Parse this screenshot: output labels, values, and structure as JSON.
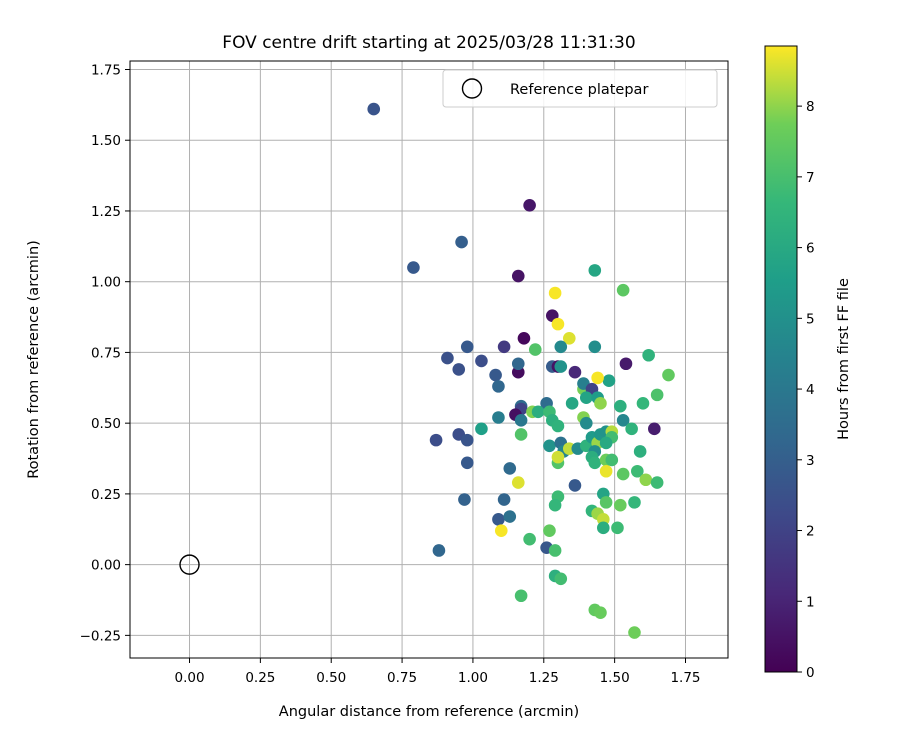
{
  "chart_data": {
    "type": "scatter",
    "title": "FOV centre drift starting at 2025/03/28 11:31:30",
    "xlabel": "Angular distance from reference (arcmin)",
    "ylabel": "Rotation from reference (arcmin)",
    "xlim": [
      -0.21,
      1.9
    ],
    "ylim": [
      -0.33,
      1.78
    ],
    "xticks": [
      0.0,
      0.25,
      0.5,
      0.75,
      1.0,
      1.25,
      1.5,
      1.75
    ],
    "xtick_labels": [
      "0.00",
      "0.25",
      "0.50",
      "0.75",
      "1.00",
      "1.25",
      "1.50",
      "1.75"
    ],
    "yticks": [
      -0.25,
      0.0,
      0.25,
      0.5,
      0.75,
      1.0,
      1.25,
      1.5,
      1.75
    ],
    "ytick_labels": [
      "−0.25",
      "0.00",
      "0.25",
      "0.50",
      "0.75",
      "1.00",
      "1.25",
      "1.50",
      "1.75"
    ],
    "grid": true,
    "legend": {
      "placement": "upper right",
      "entries": [
        "Reference platepar"
      ]
    },
    "reference_point": {
      "x": 0.0,
      "y": 0.0,
      "marker": "open-circle"
    },
    "colorbar": {
      "label": "Hours from first FF file",
      "colormap": "viridis",
      "range": [
        0,
        8.85
      ],
      "ticks": [
        0,
        1,
        2,
        3,
        4,
        5,
        6,
        7,
        8
      ],
      "tick_labels": [
        "0",
        "1",
        "2",
        "3",
        "4",
        "5",
        "6",
        "7",
        "8"
      ]
    },
    "points": [
      {
        "x": 0.65,
        "y": 1.61,
        "h": 2.6
      },
      {
        "x": 0.79,
        "y": 1.05,
        "h": 2.8
      },
      {
        "x": 0.96,
        "y": 1.14,
        "h": 3.0
      },
      {
        "x": 1.2,
        "y": 1.27,
        "h": 0.6
      },
      {
        "x": 1.16,
        "y": 1.02,
        "h": 0.5
      },
      {
        "x": 0.91,
        "y": 0.73,
        "h": 2.5
      },
      {
        "x": 0.98,
        "y": 0.77,
        "h": 2.8
      },
      {
        "x": 0.95,
        "y": 0.69,
        "h": 2.5
      },
      {
        "x": 1.03,
        "y": 0.72,
        "h": 2.4
      },
      {
        "x": 1.11,
        "y": 0.77,
        "h": 1.7
      },
      {
        "x": 1.18,
        "y": 0.8,
        "h": 0.2
      },
      {
        "x": 1.08,
        "y": 0.67,
        "h": 2.8
      },
      {
        "x": 1.09,
        "y": 0.63,
        "h": 3.3
      },
      {
        "x": 1.16,
        "y": 0.68,
        "h": 0.3
      },
      {
        "x": 1.16,
        "y": 0.71,
        "h": 3.3
      },
      {
        "x": 1.28,
        "y": 0.88,
        "h": 0.5
      },
      {
        "x": 1.29,
        "y": 0.96,
        "h": 8.8
      },
      {
        "x": 1.3,
        "y": 0.85,
        "h": 8.8
      },
      {
        "x": 1.34,
        "y": 0.8,
        "h": 8.6
      },
      {
        "x": 1.22,
        "y": 0.76,
        "h": 7.2
      },
      {
        "x": 1.28,
        "y": 0.7,
        "h": 2.9
      },
      {
        "x": 1.3,
        "y": 0.7,
        "h": 0.5
      },
      {
        "x": 1.31,
        "y": 0.77,
        "h": 4.7
      },
      {
        "x": 1.31,
        "y": 0.7,
        "h": 5.1
      },
      {
        "x": 1.36,
        "y": 0.68,
        "h": 1.1
      },
      {
        "x": 1.43,
        "y": 1.04,
        "h": 5.9
      },
      {
        "x": 1.53,
        "y": 0.97,
        "h": 7.4
      },
      {
        "x": 1.43,
        "y": 0.77,
        "h": 4.9
      },
      {
        "x": 1.54,
        "y": 0.71,
        "h": 0.7
      },
      {
        "x": 1.62,
        "y": 0.74,
        "h": 6.4
      },
      {
        "x": 1.69,
        "y": 0.67,
        "h": 7.5
      },
      {
        "x": 1.65,
        "y": 0.6,
        "h": 7.1
      },
      {
        "x": 1.6,
        "y": 0.57,
        "h": 6.6
      },
      {
        "x": 1.52,
        "y": 0.56,
        "h": 6.3
      },
      {
        "x": 1.48,
        "y": 0.65,
        "h": 5.7
      },
      {
        "x": 1.44,
        "y": 0.66,
        "h": 8.8
      },
      {
        "x": 1.39,
        "y": 0.62,
        "h": 7.8
      },
      {
        "x": 1.39,
        "y": 0.64,
        "h": 4.3
      },
      {
        "x": 1.42,
        "y": 0.62,
        "h": 2.0
      },
      {
        "x": 1.4,
        "y": 0.59,
        "h": 5.8
      },
      {
        "x": 1.44,
        "y": 0.59,
        "h": 5.5
      },
      {
        "x": 1.45,
        "y": 0.57,
        "h": 8.0
      },
      {
        "x": 1.35,
        "y": 0.57,
        "h": 5.9
      },
      {
        "x": 1.26,
        "y": 0.57,
        "h": 3.5
      },
      {
        "x": 1.17,
        "y": 0.56,
        "h": 3.5
      },
      {
        "x": 1.17,
        "y": 0.55,
        "h": 2.0
      },
      {
        "x": 1.15,
        "y": 0.53,
        "h": 0.4
      },
      {
        "x": 1.17,
        "y": 0.51,
        "h": 4.0
      },
      {
        "x": 1.09,
        "y": 0.52,
        "h": 4.2
      },
      {
        "x": 1.03,
        "y": 0.48,
        "h": 5.6
      },
      {
        "x": 1.21,
        "y": 0.54,
        "h": 7.9
      },
      {
        "x": 1.23,
        "y": 0.54,
        "h": 6.2
      },
      {
        "x": 1.27,
        "y": 0.54,
        "h": 6.8
      },
      {
        "x": 1.28,
        "y": 0.51,
        "h": 6.3
      },
      {
        "x": 1.3,
        "y": 0.49,
        "h": 6.4
      },
      {
        "x": 1.39,
        "y": 0.52,
        "h": 7.9
      },
      {
        "x": 1.4,
        "y": 0.5,
        "h": 4.8
      },
      {
        "x": 1.53,
        "y": 0.51,
        "h": 4.6
      },
      {
        "x": 1.56,
        "y": 0.48,
        "h": 6.4
      },
      {
        "x": 1.64,
        "y": 0.48,
        "h": 0.8
      },
      {
        "x": 0.87,
        "y": 0.44,
        "h": 2.4
      },
      {
        "x": 0.95,
        "y": 0.46,
        "h": 2.4
      },
      {
        "x": 0.98,
        "y": 0.44,
        "h": 2.6
      },
      {
        "x": 1.17,
        "y": 0.46,
        "h": 7.2
      },
      {
        "x": 1.27,
        "y": 0.42,
        "h": 5.1
      },
      {
        "x": 1.31,
        "y": 0.43,
        "h": 3.7
      },
      {
        "x": 1.32,
        "y": 0.4,
        "h": 4.6
      },
      {
        "x": 1.34,
        "y": 0.41,
        "h": 8.4
      },
      {
        "x": 1.37,
        "y": 0.41,
        "h": 4.8
      },
      {
        "x": 1.4,
        "y": 0.42,
        "h": 6.4
      },
      {
        "x": 1.42,
        "y": 0.45,
        "h": 5.4
      },
      {
        "x": 1.44,
        "y": 0.43,
        "h": 8.1
      },
      {
        "x": 1.45,
        "y": 0.46,
        "h": 5.2
      },
      {
        "x": 1.47,
        "y": 0.47,
        "h": 5.1
      },
      {
        "x": 1.49,
        "y": 0.47,
        "h": 8.3
      },
      {
        "x": 1.49,
        "y": 0.45,
        "h": 6.9
      },
      {
        "x": 1.47,
        "y": 0.43,
        "h": 6.0
      },
      {
        "x": 1.43,
        "y": 0.4,
        "h": 4.9
      },
      {
        "x": 1.42,
        "y": 0.38,
        "h": 6.2
      },
      {
        "x": 1.43,
        "y": 0.36,
        "h": 6.4
      },
      {
        "x": 1.47,
        "y": 0.37,
        "h": 7.7
      },
      {
        "x": 1.49,
        "y": 0.37,
        "h": 6.9
      },
      {
        "x": 1.59,
        "y": 0.4,
        "h": 6.3
      },
      {
        "x": 1.3,
        "y": 0.36,
        "h": 7.2
      },
      {
        "x": 1.3,
        "y": 0.38,
        "h": 8.5
      },
      {
        "x": 0.98,
        "y": 0.36,
        "h": 2.8
      },
      {
        "x": 1.13,
        "y": 0.34,
        "h": 3.4
      },
      {
        "x": 1.36,
        "y": 0.28,
        "h": 2.8
      },
      {
        "x": 1.16,
        "y": 0.29,
        "h": 8.6
      },
      {
        "x": 1.47,
        "y": 0.33,
        "h": 8.7
      },
      {
        "x": 1.53,
        "y": 0.32,
        "h": 7.4
      },
      {
        "x": 1.58,
        "y": 0.33,
        "h": 6.8
      },
      {
        "x": 1.61,
        "y": 0.3,
        "h": 8.0
      },
      {
        "x": 1.65,
        "y": 0.29,
        "h": 6.8
      },
      {
        "x": 1.46,
        "y": 0.25,
        "h": 5.8
      },
      {
        "x": 1.3,
        "y": 0.24,
        "h": 6.8
      },
      {
        "x": 0.97,
        "y": 0.23,
        "h": 3.1
      },
      {
        "x": 1.11,
        "y": 0.23,
        "h": 3.2
      },
      {
        "x": 1.29,
        "y": 0.21,
        "h": 6.6
      },
      {
        "x": 1.47,
        "y": 0.22,
        "h": 7.3
      },
      {
        "x": 1.52,
        "y": 0.21,
        "h": 7.6
      },
      {
        "x": 1.57,
        "y": 0.22,
        "h": 6.6
      },
      {
        "x": 1.09,
        "y": 0.16,
        "h": 2.8
      },
      {
        "x": 1.13,
        "y": 0.17,
        "h": 3.7
      },
      {
        "x": 1.1,
        "y": 0.12,
        "h": 8.8
      },
      {
        "x": 1.42,
        "y": 0.19,
        "h": 6.5
      },
      {
        "x": 1.44,
        "y": 0.18,
        "h": 8.1
      },
      {
        "x": 1.46,
        "y": 0.16,
        "h": 8.4
      },
      {
        "x": 1.46,
        "y": 0.13,
        "h": 6.2
      },
      {
        "x": 1.51,
        "y": 0.13,
        "h": 6.8
      },
      {
        "x": 1.27,
        "y": 0.12,
        "h": 7.5
      },
      {
        "x": 1.2,
        "y": 0.09,
        "h": 6.9
      },
      {
        "x": 1.26,
        "y": 0.06,
        "h": 2.7
      },
      {
        "x": 1.29,
        "y": 0.05,
        "h": 7.0
      },
      {
        "x": 0.88,
        "y": 0.05,
        "h": 3.3
      },
      {
        "x": 1.29,
        "y": -0.04,
        "h": 6.3
      },
      {
        "x": 1.31,
        "y": -0.05,
        "h": 6.9
      },
      {
        "x": 1.17,
        "y": -0.11,
        "h": 7.0
      },
      {
        "x": 1.43,
        "y": -0.16,
        "h": 7.5
      },
      {
        "x": 1.45,
        "y": -0.17,
        "h": 7.6
      },
      {
        "x": 1.57,
        "y": -0.24,
        "h": 7.7
      }
    ]
  }
}
